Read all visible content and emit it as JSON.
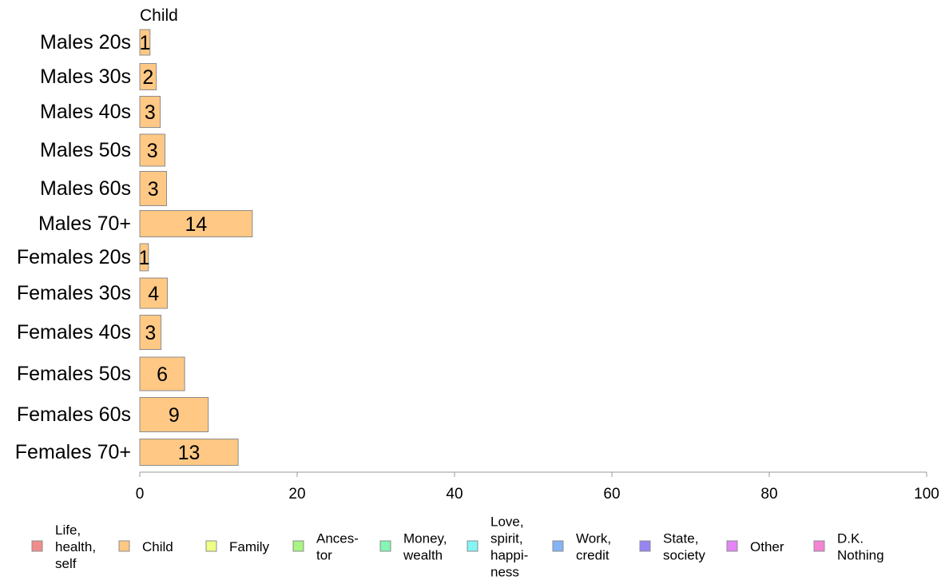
{
  "chart_data": {
    "type": "bar",
    "orientation": "horizontal",
    "column_title": "Child",
    "categories": [
      "Males 20s",
      "Males 30s",
      "Males 40s",
      "Males 50s",
      "Males 60s",
      "Males 70+",
      "Females 20s",
      "Females 30s",
      "Females 40s",
      "Females 50s",
      "Females 60s",
      "Females 70+"
    ],
    "series": [
      {
        "name": "Child",
        "color": "#ffc884",
        "values": [
          1.3,
          2.1,
          2.6,
          3.2,
          3.4,
          14.3,
          1.1,
          3.5,
          2.7,
          5.7,
          8.7,
          12.5
        ],
        "labels": [
          "1",
          "2",
          "3",
          "3",
          "3",
          "14",
          "1",
          "4",
          "3",
          "6",
          "9",
          "13"
        ]
      }
    ],
    "xlim": [
      0,
      100
    ],
    "xticks": [
      "0",
      "20",
      "40",
      "60",
      "80",
      "100"
    ],
    "xlabel": "",
    "ylabel": "",
    "grid": false,
    "legend_position": "bottom",
    "legend": [
      {
        "label": "Life, health, self",
        "lines": [
          "Life,",
          "health,",
          "self"
        ],
        "color": "#f28b8b"
      },
      {
        "label": "Child",
        "lines": [
          "Child"
        ],
        "color": "#ffc884"
      },
      {
        "label": "Family",
        "lines": [
          "Family"
        ],
        "color": "#eeff84"
      },
      {
        "label": "Ances- tor",
        "lines": [
          "Ances-",
          "tor"
        ],
        "color": "#a8f584"
      },
      {
        "label": "Money, wealth",
        "lines": [
          "Money,",
          "wealth"
        ],
        "color": "#84f5b4"
      },
      {
        "label": "Love, spirit, happi- ness",
        "lines": [
          "Love,",
          "spirit,",
          "happi-",
          "ness"
        ],
        "color": "#84f5f5"
      },
      {
        "label": "Work, credit",
        "lines": [
          "Work,",
          "credit"
        ],
        "color": "#84b4f5"
      },
      {
        "label": "State, society",
        "lines": [
          "State,",
          "society"
        ],
        "color": "#9884f5"
      },
      {
        "label": "Other",
        "lines": [
          "Other"
        ],
        "color": "#e484f5"
      },
      {
        "label": "D.K. Nothing",
        "lines": [
          "D.K.",
          "Nothing"
        ],
        "color": "#f584d4"
      }
    ]
  }
}
